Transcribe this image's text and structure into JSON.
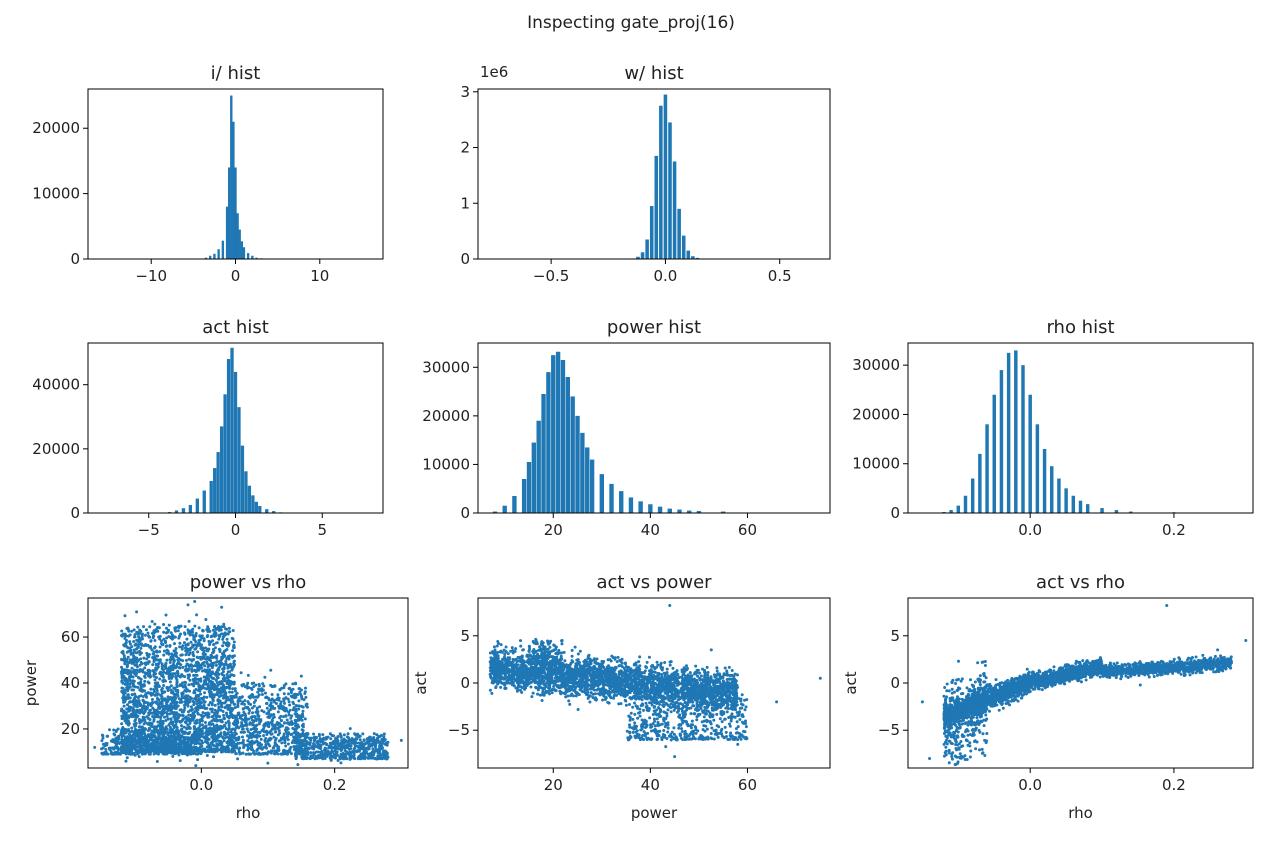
{
  "figure": {
    "suptitle": "Inspecting gate_proj(16)",
    "color": "#1f77b4"
  },
  "chart_data": [
    {
      "id": "i-hist",
      "type": "bar",
      "title": "i/ hist",
      "xlabel": "",
      "ylabel": "",
      "xlim": [
        -17.5,
        17.5
      ],
      "ylim": [
        0,
        26000
      ],
      "xticks": [
        -10,
        0,
        10
      ],
      "xtick_labels": [
        "−10",
        "0",
        "10"
      ],
      "yticks": [
        0,
        10000,
        20000
      ],
      "ytick_labels": [
        "0",
        "10000",
        "20000"
      ],
      "bins": {
        "x": [
          -3.5,
          -3.0,
          -2.5,
          -2.0,
          -1.5,
          -1.0,
          -0.75,
          -0.5,
          -0.25,
          0.0,
          0.25,
          0.5,
          0.75,
          1.0,
          1.5,
          2.0,
          2.5,
          3.0
        ],
        "width": 0.28,
        "values": [
          200,
          500,
          800,
          1500,
          2800,
          8000,
          14000,
          25000,
          21000,
          14000,
          7000,
          4500,
          2700,
          1800,
          900,
          500,
          200,
          100
        ]
      }
    },
    {
      "id": "w-hist",
      "type": "bar",
      "title": "w/ hist",
      "xlabel": "",
      "ylabel": "",
      "offset_text": "1e6",
      "xlim": [
        -0.82,
        0.72
      ],
      "ylim": [
        0,
        3.05
      ],
      "xticks": [
        -0.5,
        0.0,
        0.5
      ],
      "xtick_labels": [
        "−0.5",
        "0.0",
        "0.5"
      ],
      "yticks": [
        0,
        1,
        2,
        3
      ],
      "ytick_labels": [
        "0",
        "1",
        "2",
        "3"
      ],
      "bins": {
        "x": [
          -0.14,
          -0.12,
          -0.1,
          -0.08,
          -0.06,
          -0.04,
          -0.02,
          0.0,
          0.02,
          0.04,
          0.06,
          0.08,
          0.1,
          0.12,
          0.14
        ],
        "width": 0.0155,
        "values": [
          0.01,
          0.04,
          0.12,
          0.35,
          0.95,
          1.85,
          2.75,
          2.95,
          2.45,
          1.75,
          0.9,
          0.42,
          0.15,
          0.05,
          0.02
        ]
      }
    },
    {
      "id": "act-hist",
      "type": "bar",
      "title": "act hist",
      "xlabel": "",
      "ylabel": "",
      "xlim": [
        -8.5,
        8.5
      ],
      "ylim": [
        0,
        53000
      ],
      "xticks": [
        -5,
        0,
        5
      ],
      "xtick_labels": [
        "−5",
        "0",
        "5"
      ],
      "yticks": [
        0,
        20000,
        40000
      ],
      "ytick_labels": [
        "0",
        "20000",
        "40000"
      ],
      "bins": {
        "x": [
          -3.8,
          -3.4,
          -3.0,
          -2.6,
          -2.2,
          -1.8,
          -1.4,
          -1.2,
          -1.0,
          -0.8,
          -0.6,
          -0.4,
          -0.2,
          0.0,
          0.2,
          0.4,
          0.6,
          0.8,
          1.0,
          1.2,
          1.4,
          1.8,
          2.2,
          2.6
        ],
        "width": 0.19,
        "values": [
          300,
          800,
          1500,
          2500,
          4500,
          7000,
          10000,
          14000,
          19000,
          27000,
          37000,
          48000,
          51500,
          44000,
          33000,
          21000,
          13000,
          8500,
          5500,
          3500,
          2200,
          1200,
          600,
          200
        ]
      }
    },
    {
      "id": "power-hist",
      "type": "bar",
      "title": "power hist",
      "xlabel": "",
      "ylabel": "",
      "xlim": [
        4.5,
        77
      ],
      "ylim": [
        0,
        35000
      ],
      "xticks": [
        20,
        40,
        60
      ],
      "xtick_labels": [
        "20",
        "40",
        "60"
      ],
      "yticks": [
        0,
        10000,
        20000,
        30000
      ],
      "ytick_labels": [
        "0",
        "10000",
        "20000",
        "30000"
      ],
      "bins": {
        "x": [
          8,
          10,
          12,
          14,
          15,
          16,
          17,
          18,
          19,
          20,
          21,
          22,
          23,
          24,
          25,
          26,
          27,
          28,
          30,
          32,
          34,
          36,
          38,
          40,
          42,
          44,
          46,
          48,
          50,
          55,
          60
        ],
        "width": 0.9,
        "values": [
          300,
          1500,
          3500,
          7000,
          10500,
          14500,
          19000,
          24500,
          29000,
          32500,
          33200,
          31500,
          28000,
          24000,
          20000,
          16500,
          13500,
          11000,
          8000,
          6000,
          4500,
          3200,
          2400,
          1800,
          1300,
          900,
          700,
          500,
          400,
          300,
          100
        ]
      }
    },
    {
      "id": "rho-hist",
      "type": "bar",
      "title": "rho hist",
      "xlabel": "",
      "ylabel": "",
      "xlim": [
        -0.17,
        0.31
      ],
      "ylim": [
        0,
        34500
      ],
      "xticks": [
        0.0,
        0.2
      ],
      "xtick_labels": [
        "0.0",
        "0.2"
      ],
      "yticks": [
        0,
        10000,
        20000,
        30000
      ],
      "ytick_labels": [
        "0",
        "10000",
        "20000",
        "30000"
      ],
      "bins": {
        "x": [
          -0.12,
          -0.11,
          -0.1,
          -0.09,
          -0.08,
          -0.07,
          -0.06,
          -0.05,
          -0.04,
          -0.03,
          -0.02,
          -0.01,
          0.0,
          0.01,
          0.02,
          0.03,
          0.04,
          0.05,
          0.06,
          0.07,
          0.08,
          0.1,
          0.12,
          0.14,
          0.2
        ],
        "width": 0.0048,
        "values": [
          200,
          600,
          1500,
          3500,
          7000,
          12000,
          18000,
          24000,
          29000,
          32500,
          33000,
          30000,
          24000,
          18000,
          13000,
          9500,
          7000,
          5000,
          3500,
          2500,
          1800,
          1000,
          600,
          300,
          150
        ]
      }
    },
    {
      "id": "power-vs-rho",
      "type": "scatter",
      "title": "power vs rho",
      "xlabel": "rho",
      "ylabel": "power",
      "xlim": [
        -0.17,
        0.31
      ],
      "ylim": [
        3,
        77
      ],
      "xticks": [
        0.0,
        0.2
      ],
      "xtick_labels": [
        "0.0",
        "0.2"
      ],
      "yticks": [
        20,
        40,
        60
      ],
      "ytick_labels": [
        "20",
        "40",
        "60"
      ],
      "clusters": [
        {
          "x": [
            -0.12,
            0.05
          ],
          "y": [
            10,
            65
          ],
          "n": 2600
        },
        {
          "x": [
            0.05,
            0.16
          ],
          "y": [
            9,
            40
          ],
          "n": 700
        },
        {
          "x": [
            0.14,
            0.28
          ],
          "y": [
            7,
            18
          ],
          "n": 600
        },
        {
          "x": [
            -0.15,
            0.0
          ],
          "y": [
            9,
            20
          ],
          "n": 500
        }
      ],
      "points": [
        {
          "x": -0.01,
          "y": 75.5
        },
        {
          "x": 0.15,
          "y": 43
        },
        {
          "x": -0.16,
          "y": 12
        },
        {
          "x": 0.3,
          "y": 15
        },
        {
          "x": -0.02,
          "y": 74
        }
      ]
    },
    {
      "id": "act-vs-power",
      "type": "scatter",
      "title": "act vs power",
      "xlabel": "power",
      "ylabel": "act",
      "xlim": [
        4.5,
        77
      ],
      "ylim": [
        -9,
        9
      ],
      "xticks": [
        20,
        40,
        60
      ],
      "xtick_labels": [
        "20",
        "40",
        "60"
      ],
      "yticks": [
        -5,
        0,
        5
      ],
      "ytick_labels": [
        "−5",
        "0",
        "5"
      ],
      "clusters": [
        {
          "x": [
            7,
            58
          ],
          "y": [
            -3,
            3
          ],
          "n": 3200,
          "slope": -0.05,
          "y0": 1.5
        },
        {
          "x": [
            15,
            22
          ],
          "y": [
            2,
            4.5
          ],
          "n": 150
        },
        {
          "x": [
            35,
            60
          ],
          "y": [
            -6,
            -1
          ],
          "n": 500
        }
      ],
      "points": [
        {
          "x": 44,
          "y": 8.2
        },
        {
          "x": 75,
          "y": 0.5
        },
        {
          "x": 66,
          "y": -2
        },
        {
          "x": 58,
          "y": -6.5
        },
        {
          "x": 45,
          "y": -7.8
        }
      ]
    },
    {
      "id": "act-vs-rho",
      "type": "scatter",
      "title": "act vs rho",
      "xlabel": "rho",
      "ylabel": "act",
      "xlim": [
        -0.17,
        0.31
      ],
      "ylim": [
        -9,
        9
      ],
      "xticks": [
        0.0,
        0.2
      ],
      "xtick_labels": [
        "0.0",
        "0.2"
      ],
      "yticks": [
        -5,
        0,
        5
      ],
      "ytick_labels": [
        "−5",
        "0",
        "5"
      ],
      "segments": [
        {
          "x": [
            -0.12,
            0.0
          ],
          "slope": 28,
          "spread": 1.2,
          "n": 1200
        },
        {
          "x": [
            0.0,
            0.1
          ],
          "slope": 18,
          "spread": 0.8,
          "n": 900
        },
        {
          "x": [
            0.1,
            0.28
          ],
          "slope": 5,
          "y0": 1.2,
          "spread": 0.7,
          "n": 900
        },
        {
          "x": [
            -0.12,
            -0.06
          ],
          "slope": 40,
          "spread": 2.2,
          "n": 400
        }
      ],
      "points": [
        {
          "x": 0.19,
          "y": 8.2
        },
        {
          "x": 0.3,
          "y": 4.5
        },
        {
          "x": -0.14,
          "y": -8
        },
        {
          "x": -0.15,
          "y": -2
        }
      ]
    }
  ]
}
